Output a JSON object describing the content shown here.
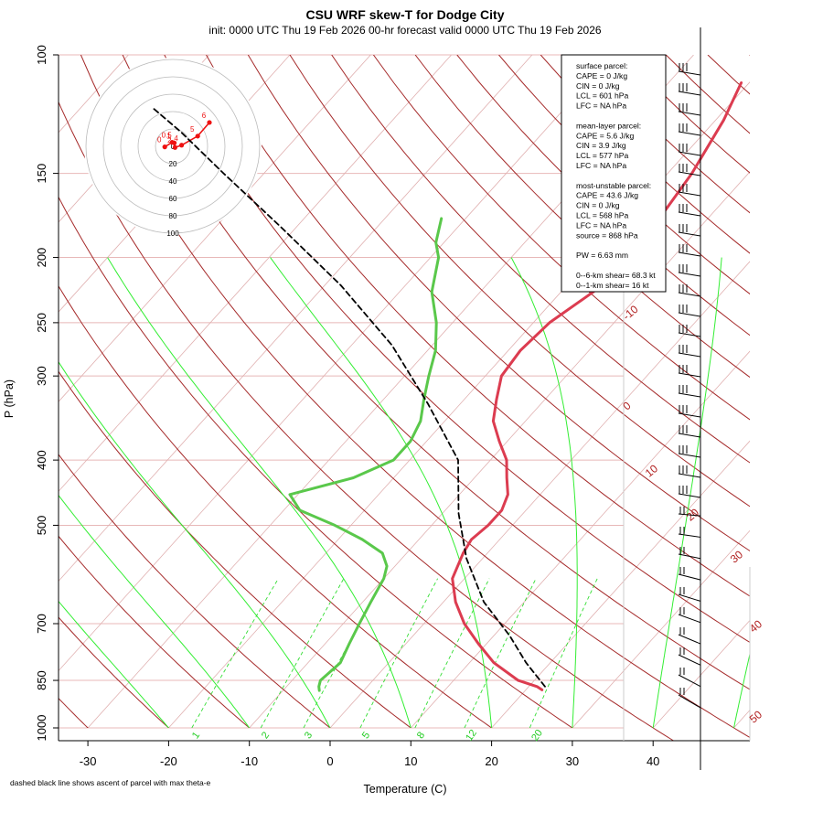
{
  "title": "CSU WRF skew-T for Dodge City",
  "subtitle": "init: 0000 UTC Thu 19 Feb 2026     00-hr forecast valid 0000 UTC Thu 19 Feb 2026",
  "footnote": "dashed black line shows ascent of parcel with max theta-e",
  "colors": {
    "temperature": "#dc3c50",
    "dewpoint": "#5ac84b",
    "parcel": "#000000",
    "dry_adiabat": "#a52a2a",
    "mixing_ratio": "#33dd33",
    "hodograph": "#ee1111",
    "grid": "#e8b8b8"
  },
  "info_box": {
    "lines": [
      "surface parcel:",
      "CAPE = 0 J/kg",
      "CIN = 0 J/kg",
      "LCL = 601 hPa",
      "LFC = NA hPa",
      "",
      "mean-layer parcel:",
      "CAPE = 5.6 J/kg",
      "CIN = 3.9 J/kg",
      "LCL = 577 hPa",
      "LFC = NA hPa",
      "",
      "most-unstable parcel:",
      "CAPE = 43.6 J/kg",
      "CIN = 0 J/kg",
      "LCL = 568 hPa",
      "LFC = NA hPa",
      "source = 868 hPa",
      "",
      "PW =  6.63 mm",
      "",
      "0--6-km shear= 68.3 kt",
      "0--1-km shear= 16 kt"
    ]
  },
  "chart_data": [
    {
      "type": "line",
      "title": "CSU WRF skew-T for Dodge City",
      "xlabel": "Temperature (C)",
      "ylabel": "P (hPa)",
      "y_scale": "log",
      "xlim": [
        -33,
        52
      ],
      "ylim": [
        1000,
        100
      ],
      "x_ticks": [
        -30,
        -20,
        -10,
        0,
        10,
        20,
        30,
        40
      ],
      "y_ticks": [
        100,
        150,
        200,
        250,
        300,
        400,
        500,
        700,
        850,
        1000
      ],
      "grid": true,
      "dry_adiabat_labels": [
        -10,
        0,
        10,
        20,
        30,
        40,
        50
      ],
      "mixing_ratio_labels": [
        1,
        2,
        3,
        5,
        8,
        12,
        20
      ],
      "series": [
        {
          "name": "temperature",
          "points": [
            [
              22,
              878
            ],
            [
              21,
              868
            ],
            [
              18,
              850
            ],
            [
              13,
              800
            ],
            [
              9,
              750
            ],
            [
              5,
              700
            ],
            [
              1.5,
              650
            ],
            [
              -1.5,
              600
            ],
            [
              -3,
              550
            ],
            [
              -3.5,
              525
            ],
            [
              -3,
              500
            ],
            [
              -3,
              475
            ],
            [
              -4,
              450
            ],
            [
              -6,
              425
            ],
            [
              -8,
              400
            ],
            [
              -11,
              375
            ],
            [
              -14,
              350
            ],
            [
              -16,
              325
            ],
            [
              -18,
              300
            ],
            [
              -18.5,
              275
            ],
            [
              -18,
              250
            ],
            [
              -16,
              225
            ],
            [
              -15,
              200
            ],
            [
              -16,
              175
            ],
            [
              -17,
              150
            ],
            [
              -19,
              125
            ],
            [
              -21,
              110
            ]
          ]
        },
        {
          "name": "dewpoint",
          "points": [
            [
              -5.5,
              880
            ],
            [
              -6,
              868
            ],
            [
              -6.5,
              850
            ],
            [
              -6,
              800
            ],
            [
              -7,
              750
            ],
            [
              -8,
              700
            ],
            [
              -9,
              650
            ],
            [
              -10,
              600
            ],
            [
              -11,
              575
            ],
            [
              -13,
              550
            ],
            [
              -17,
              525
            ],
            [
              -22,
              500
            ],
            [
              -28,
              475
            ],
            [
              -31,
              450
            ],
            [
              -25,
              425
            ],
            [
              -22,
              400
            ],
            [
              -22,
              375
            ],
            [
              -23,
              350
            ],
            [
              -25,
              325
            ],
            [
              -27,
              300
            ],
            [
              -29,
              275
            ],
            [
              -32,
              250
            ],
            [
              -36,
              225
            ],
            [
              -39,
              200
            ],
            [
              -41,
              190
            ],
            [
              -43,
              175
            ]
          ]
        },
        {
          "name": "parcel",
          "points": [
            [
              22,
              868
            ],
            [
              17,
              800
            ],
            [
              12,
              730
            ],
            [
              5,
              650
            ],
            [
              -2,
              560
            ],
            [
              -8,
              480
            ],
            [
              -14,
              400
            ],
            [
              -24,
              330
            ],
            [
              -35,
              270
            ],
            [
              -48,
              220
            ],
            [
              -62,
              180
            ],
            [
              -75,
              150
            ],
            [
              -85,
              130
            ],
            [
              -91,
              120
            ]
          ]
        }
      ]
    },
    {
      "type": "line",
      "title": "hodograph",
      "ring_labels": [
        0,
        20,
        40,
        60,
        80,
        100
      ],
      "point_labels": [
        "0",
        "0.5",
        "1",
        "2",
        "4",
        "5",
        "6"
      ],
      "series": [
        {
          "name": "hodograph",
          "points": [
            [
              -11,
              -1
            ],
            [
              -1,
              7
            ],
            [
              2,
              6
            ],
            [
              3,
              -2
            ],
            [
              12,
              2
            ],
            [
              34,
              18
            ],
            [
              50,
              42
            ]
          ]
        }
      ]
    }
  ]
}
